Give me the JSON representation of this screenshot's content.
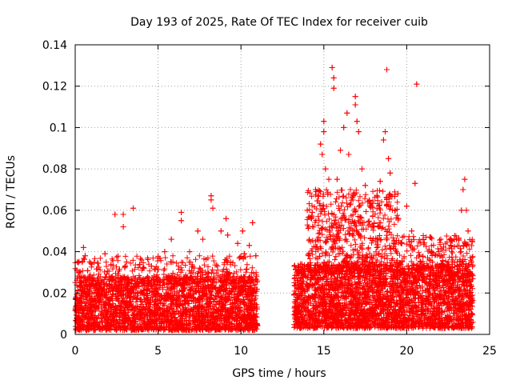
{
  "chart_data": {
    "type": "scatter",
    "title": "Day 193 of 2025, Rate Of TEC Index for receiver cuib",
    "xlabel": "GPS time / hours",
    "ylabel": "ROTI / TECUs",
    "xlim": [
      0,
      25
    ],
    "ylim": [
      0,
      0.14
    ],
    "x_ticks": [
      "0",
      "5",
      "10",
      "15",
      "20",
      "25"
    ],
    "y_ticks": [
      "0",
      "0.02",
      "0.04",
      "0.06",
      "0.08",
      "0.1",
      "0.12",
      "0.14"
    ],
    "grid": true,
    "marker": "+",
    "marker_color": "#ff0000",
    "data_gap_hours": [
      11.0,
      13.2
    ],
    "series": [
      {
        "points": [
          [
            0.1,
            0.031
          ],
          [
            0.5,
            0.042
          ],
          [
            0.6,
            0.038
          ],
          [
            1.0,
            0.034
          ],
          [
            1.8,
            0.039
          ],
          [
            2.4,
            0.058
          ],
          [
            2.9,
            0.058
          ],
          [
            2.9,
            0.052
          ],
          [
            3.1,
            0.035
          ],
          [
            3.5,
            0.061
          ],
          [
            4.0,
            0.036
          ],
          [
            4.6,
            0.033
          ],
          [
            5.0,
            0.037
          ],
          [
            5.4,
            0.04
          ],
          [
            5.8,
            0.046
          ],
          [
            6.4,
            0.059
          ],
          [
            6.4,
            0.055
          ],
          [
            6.9,
            0.04
          ],
          [
            7.4,
            0.05
          ],
          [
            7.7,
            0.046
          ],
          [
            8.2,
            0.067
          ],
          [
            8.2,
            0.065
          ],
          [
            8.3,
            0.061
          ],
          [
            8.8,
            0.05
          ],
          [
            9.1,
            0.056
          ],
          [
            9.2,
            0.048
          ],
          [
            9.8,
            0.044
          ],
          [
            10.1,
            0.05
          ],
          [
            10.2,
            0.039
          ],
          [
            10.5,
            0.043
          ],
          [
            10.7,
            0.054
          ],
          [
            10.9,
            0.038
          ],
          [
            13.6,
            0.034
          ],
          [
            14.0,
            0.06
          ],
          [
            14.3,
            0.059
          ],
          [
            14.5,
            0.07
          ],
          [
            14.8,
            0.092
          ],
          [
            14.9,
            0.087
          ],
          [
            15.0,
            0.103
          ],
          [
            15.0,
            0.098
          ],
          [
            15.1,
            0.08
          ],
          [
            15.3,
            0.075
          ],
          [
            15.5,
            0.129
          ],
          [
            15.6,
            0.124
          ],
          [
            15.6,
            0.119
          ],
          [
            15.8,
            0.075
          ],
          [
            16.0,
            0.089
          ],
          [
            16.2,
            0.1
          ],
          [
            16.4,
            0.107
          ],
          [
            16.5,
            0.087
          ],
          [
            16.6,
            0.07
          ],
          [
            16.9,
            0.115
          ],
          [
            16.9,
            0.111
          ],
          [
            17.0,
            0.103
          ],
          [
            17.1,
            0.098
          ],
          [
            17.3,
            0.08
          ],
          [
            17.5,
            0.072
          ],
          [
            17.8,
            0.062
          ],
          [
            18.2,
            0.067
          ],
          [
            18.4,
            0.074
          ],
          [
            18.6,
            0.094
          ],
          [
            18.7,
            0.098
          ],
          [
            18.8,
            0.128
          ],
          [
            18.9,
            0.085
          ],
          [
            19.0,
            0.078
          ],
          [
            19.3,
            0.06
          ],
          [
            19.5,
            0.056
          ],
          [
            20.0,
            0.062
          ],
          [
            20.3,
            0.05
          ],
          [
            20.5,
            0.073
          ],
          [
            20.6,
            0.121
          ],
          [
            21.0,
            0.046
          ],
          [
            21.5,
            0.04
          ],
          [
            22.0,
            0.038
          ],
          [
            22.5,
            0.035
          ],
          [
            23.0,
            0.046
          ],
          [
            23.3,
            0.06
          ],
          [
            23.4,
            0.07
          ],
          [
            23.5,
            0.075
          ],
          [
            23.6,
            0.06
          ],
          [
            23.7,
            0.05
          ],
          [
            23.9,
            0.035
          ]
        ],
        "bands": [
          {
            "x": [
              0,
              11.0
            ],
            "y_min": 0.002,
            "y_max": 0.028,
            "count": 2600
          },
          {
            "x": [
              13.2,
              24.0
            ],
            "y_min": 0.003,
            "y_max": 0.034,
            "count": 3000
          },
          {
            "x": [
              14.0,
              19.5
            ],
            "y_min": 0.03,
            "y_max": 0.07,
            "count": 600
          },
          {
            "x": [
              19.5,
              24.0
            ],
            "y_min": 0.028,
            "y_max": 0.048,
            "count": 250
          },
          {
            "x": [
              0,
              11.0
            ],
            "y_min": 0.025,
            "y_max": 0.038,
            "count": 300
          }
        ]
      }
    ]
  }
}
